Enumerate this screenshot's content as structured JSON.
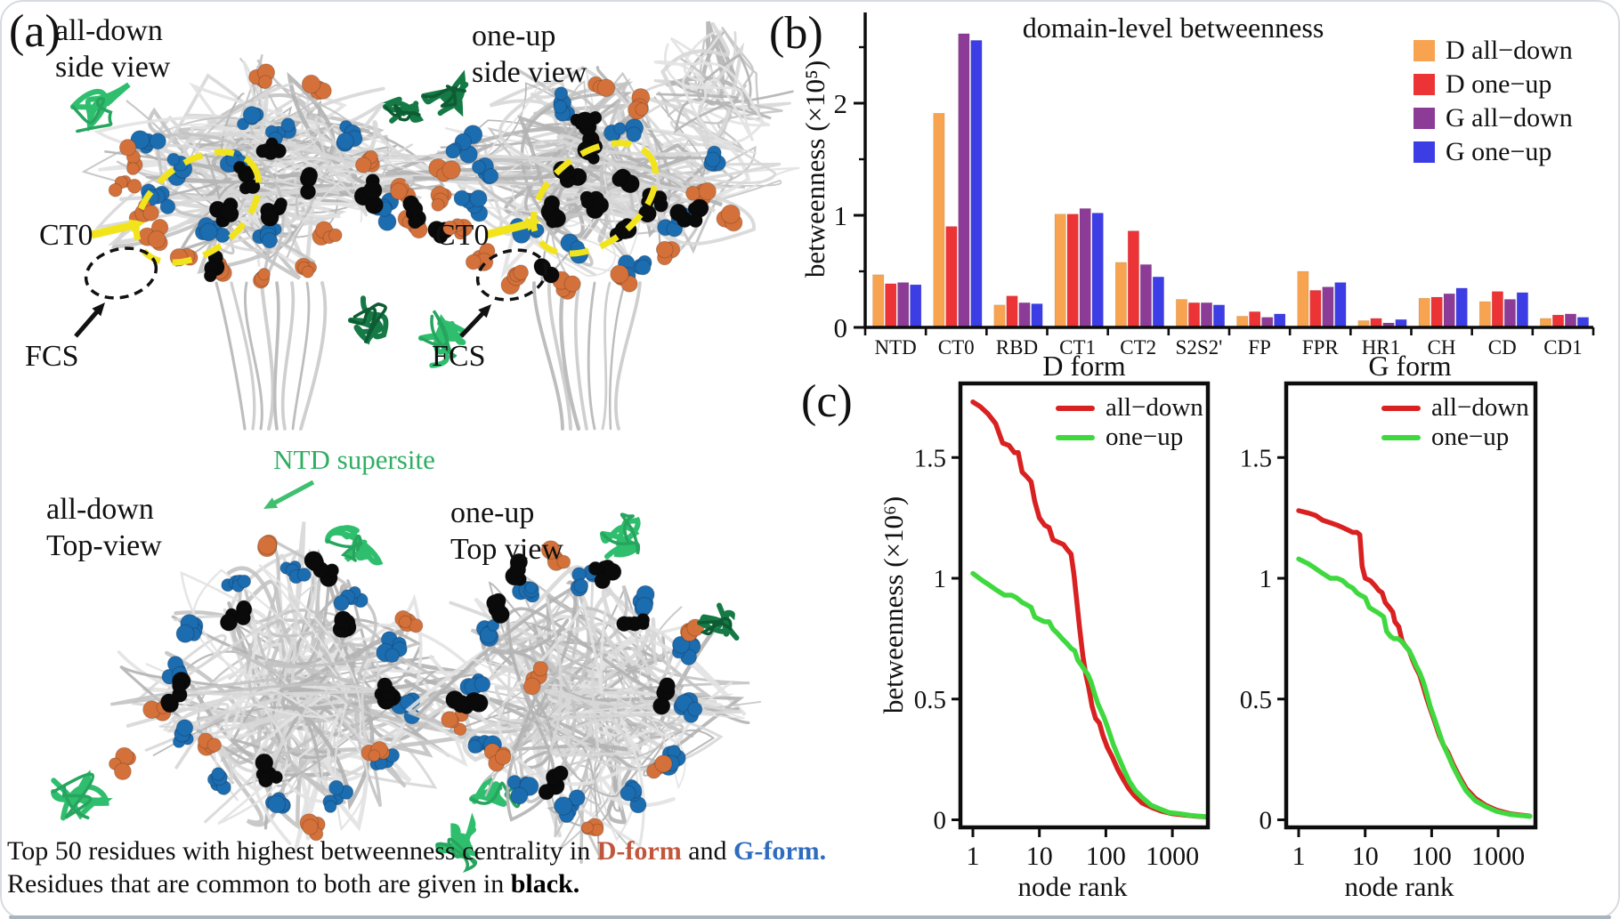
{
  "panel_a": {
    "label": "(a)",
    "views": [
      {
        "l1": "all-down",
        "l2": "side view"
      },
      {
        "l1": "one-up",
        "l2": "side view"
      },
      {
        "l1": "all-down",
        "l2": "Top-view"
      },
      {
        "l1": "one-up",
        "l2": "Top view"
      }
    ],
    "annotations": {
      "ct0": "CT0",
      "fcs": "FCS",
      "ntd": "NTD supersite"
    },
    "caption": {
      "line1_prefix": "Top 50 residues with highest betweenness centrality in ",
      "dform": "D-form",
      "and": " and ",
      "gform": "G-form.",
      "line2_prefix": "Residues that are common to both are given in ",
      "black": "black."
    },
    "structure_colors": {
      "dform_residues": "#d4713a",
      "gform_residues": "#1c6cb0",
      "common_residues": "#0a0a0a",
      "ntd_supersite": "#2fbe6e"
    }
  },
  "panel_b": {
    "label": "(b)"
  },
  "panel_c": {
    "label": "(c)"
  },
  "chart_data": [
    {
      "type": "bar",
      "title": "domain-level betweenness",
      "ylabel": "betweenness (×10⁵)",
      "xlabel": "",
      "categories": [
        "NTD",
        "CT0",
        "RBD",
        "CT1",
        "CT2",
        "S2S2'",
        "FP",
        "FPR",
        "HR1",
        "CH",
        "CD",
        "CD1"
      ],
      "yticks": [
        0,
        1,
        2
      ],
      "ylim": [
        0,
        2.8
      ],
      "grid": false,
      "legend_position": "top-right",
      "series": [
        {
          "name": "D all−down",
          "color": "#f7a34f",
          "values": [
            0.47,
            1.91,
            0.2,
            1.01,
            0.58,
            0.25,
            0.1,
            0.5,
            0.06,
            0.26,
            0.23,
            0.08
          ]
        },
        {
          "name": "D one−up",
          "color": "#ec3335",
          "values": [
            0.39,
            0.9,
            0.28,
            1.01,
            0.86,
            0.22,
            0.14,
            0.33,
            0.08,
            0.27,
            0.32,
            0.11
          ]
        },
        {
          "name": "G all−down",
          "color": "#8c3c96",
          "values": [
            0.4,
            2.62,
            0.22,
            1.06,
            0.56,
            0.22,
            0.09,
            0.36,
            0.04,
            0.3,
            0.25,
            0.12
          ]
        },
        {
          "name": "G one−up",
          "color": "#3d3de6",
          "values": [
            0.38,
            2.56,
            0.21,
            1.02,
            0.45,
            0.2,
            0.12,
            0.4,
            0.07,
            0.35,
            0.31,
            0.09
          ]
        }
      ]
    },
    {
      "type": "line",
      "title": "D form",
      "xlabel": "node rank",
      "ylabel": "betweenness (×10⁶)",
      "xscale": "log",
      "xticks": [
        1,
        10,
        100,
        1000
      ],
      "yticks": [
        0,
        0.5,
        1,
        1.5
      ],
      "ytick_labels": [
        "0",
        "0.5",
        "1",
        "1.5"
      ],
      "xlim": [
        0.65,
        3500
      ],
      "ylim": [
        0,
        1.81
      ],
      "grid": false,
      "legend_position": "top-right",
      "series": [
        {
          "name": "all−down",
          "color": "#d92121",
          "points": [
            [
              1,
              1.73
            ],
            [
              1.3,
              1.71
            ],
            [
              1.7,
              1.68
            ],
            [
              2.2,
              1.64
            ],
            [
              2.8,
              1.56
            ],
            [
              3.5,
              1.55
            ],
            [
              4.2,
              1.52
            ],
            [
              4.8,
              1.52
            ],
            [
              5.5,
              1.44
            ],
            [
              6.5,
              1.42
            ],
            [
              7.5,
              1.4
            ],
            [
              8.5,
              1.32
            ],
            [
              10,
              1.25
            ],
            [
              12,
              1.22
            ],
            [
              14,
              1.21
            ],
            [
              16,
              1.16
            ],
            [
              19,
              1.15
            ],
            [
              23,
              1.14
            ],
            [
              26,
              1.12
            ],
            [
              30,
              1.1
            ],
            [
              33,
              1.02
            ],
            [
              36,
              0.92
            ],
            [
              40,
              0.8
            ],
            [
              45,
              0.68
            ],
            [
              50,
              0.6
            ],
            [
              55,
              0.55
            ],
            [
              62,
              0.47
            ],
            [
              70,
              0.42
            ],
            [
              80,
              0.4
            ],
            [
              90,
              0.35
            ],
            [
              105,
              0.3
            ],
            [
              125,
              0.26
            ],
            [
              150,
              0.21
            ],
            [
              180,
              0.17
            ],
            [
              220,
              0.13
            ],
            [
              270,
              0.1
            ],
            [
              350,
              0.07
            ],
            [
              500,
              0.05
            ],
            [
              700,
              0.035
            ],
            [
              1000,
              0.025
            ],
            [
              1500,
              0.02
            ],
            [
              2200,
              0.015
            ],
            [
              3200,
              0.012
            ]
          ]
        },
        {
          "name": "one−up",
          "color": "#3fd93f",
          "points": [
            [
              1,
              1.02
            ],
            [
              1.4,
              0.99
            ],
            [
              1.8,
              0.97
            ],
            [
              2.3,
              0.95
            ],
            [
              3,
              0.93
            ],
            [
              3.8,
              0.93
            ],
            [
              4.5,
              0.92
            ],
            [
              5.5,
              0.9
            ],
            [
              6.5,
              0.89
            ],
            [
              7.5,
              0.88
            ],
            [
              8.5,
              0.84
            ],
            [
              10,
              0.83
            ],
            [
              12,
              0.82
            ],
            [
              14,
              0.82
            ],
            [
              16,
              0.79
            ],
            [
              19,
              0.77
            ],
            [
              22,
              0.75
            ],
            [
              26,
              0.73
            ],
            [
              30,
              0.71
            ],
            [
              34,
              0.7
            ],
            [
              38,
              0.66
            ],
            [
              43,
              0.64
            ],
            [
              48,
              0.62
            ],
            [
              54,
              0.6
            ],
            [
              60,
              0.57
            ],
            [
              68,
              0.52
            ],
            [
              76,
              0.48
            ],
            [
              85,
              0.45
            ],
            [
              95,
              0.42
            ],
            [
              110,
              0.37
            ],
            [
              130,
              0.31
            ],
            [
              155,
              0.26
            ],
            [
              185,
              0.21
            ],
            [
              225,
              0.16
            ],
            [
              280,
              0.12
            ],
            [
              360,
              0.09
            ],
            [
              480,
              0.06
            ],
            [
              650,
              0.045
            ],
            [
              900,
              0.03
            ],
            [
              1300,
              0.025
            ],
            [
              1900,
              0.018
            ],
            [
              3200,
              0.013
            ]
          ]
        }
      ]
    },
    {
      "type": "line",
      "title": "G form",
      "xlabel": "node rank",
      "ylabel": "betweenness (×10⁶)",
      "xscale": "log",
      "xticks": [
        1,
        10,
        100,
        1000
      ],
      "yticks": [
        0,
        0.5,
        1,
        1.5
      ],
      "ytick_labels": [
        "0",
        "0.5",
        "1",
        "1.5"
      ],
      "xlim": [
        0.65,
        3500
      ],
      "ylim": [
        0,
        1.81
      ],
      "grid": false,
      "legend_position": "top-right",
      "series": [
        {
          "name": "all−down",
          "color": "#d92121",
          "points": [
            [
              1,
              1.28
            ],
            [
              1.4,
              1.27
            ],
            [
              1.8,
              1.26
            ],
            [
              2.3,
              1.24
            ],
            [
              3,
              1.23
            ],
            [
              3.8,
              1.22
            ],
            [
              4.6,
              1.21
            ],
            [
              5.5,
              1.2
            ],
            [
              6.5,
              1.19
            ],
            [
              7.5,
              1.19
            ],
            [
              8.3,
              1.18
            ],
            [
              9,
              1.05
            ],
            [
              10,
              1.0
            ],
            [
              12,
              0.99
            ],
            [
              14,
              0.97
            ],
            [
              16,
              0.95
            ],
            [
              18,
              0.94
            ],
            [
              20,
              0.9
            ],
            [
              23,
              0.88
            ],
            [
              26,
              0.86
            ],
            [
              28,
              0.82
            ],
            [
              32,
              0.8
            ],
            [
              36,
              0.74
            ],
            [
              40,
              0.72
            ],
            [
              46,
              0.7
            ],
            [
              52,
              0.66
            ],
            [
              58,
              0.63
            ],
            [
              66,
              0.6
            ],
            [
              75,
              0.55
            ],
            [
              85,
              0.5
            ],
            [
              95,
              0.46
            ],
            [
              110,
              0.41
            ],
            [
              130,
              0.35
            ],
            [
              150,
              0.31
            ],
            [
              175,
              0.28
            ],
            [
              210,
              0.23
            ],
            [
              260,
              0.18
            ],
            [
              330,
              0.13
            ],
            [
              450,
              0.09
            ],
            [
              650,
              0.06
            ],
            [
              950,
              0.04
            ],
            [
              1500,
              0.025
            ],
            [
              3000,
              0.015
            ]
          ]
        },
        {
          "name": "one−up",
          "color": "#3fd93f",
          "points": [
            [
              1,
              1.08
            ],
            [
              1.4,
              1.06
            ],
            [
              1.8,
              1.04
            ],
            [
              2.3,
              1.02
            ],
            [
              3,
              1.0
            ],
            [
              3.8,
              1.0
            ],
            [
              4.6,
              0.99
            ],
            [
              5.5,
              0.97
            ],
            [
              6.5,
              0.96
            ],
            [
              7.5,
              0.94
            ],
            [
              8.5,
              0.93
            ],
            [
              10,
              0.92
            ],
            [
              11.5,
              0.88
            ],
            [
              13,
              0.87
            ],
            [
              15,
              0.86
            ],
            [
              17,
              0.85
            ],
            [
              19,
              0.84
            ],
            [
              21,
              0.78
            ],
            [
              24,
              0.76
            ],
            [
              27,
              0.75
            ],
            [
              31,
              0.75
            ],
            [
              35,
              0.74
            ],
            [
              40,
              0.72
            ],
            [
              46,
              0.7
            ],
            [
              52,
              0.67
            ],
            [
              58,
              0.64
            ],
            [
              66,
              0.61
            ],
            [
              75,
              0.57
            ],
            [
              85,
              0.52
            ],
            [
              95,
              0.47
            ],
            [
              110,
              0.42
            ],
            [
              130,
              0.36
            ],
            [
              150,
              0.31
            ],
            [
              175,
              0.27
            ],
            [
              210,
              0.22
            ],
            [
              260,
              0.17
            ],
            [
              330,
              0.12
            ],
            [
              450,
              0.08
            ],
            [
              650,
              0.055
            ],
            [
              950,
              0.035
            ],
            [
              1500,
              0.022
            ],
            [
              3000,
              0.014
            ]
          ]
        }
      ]
    }
  ]
}
